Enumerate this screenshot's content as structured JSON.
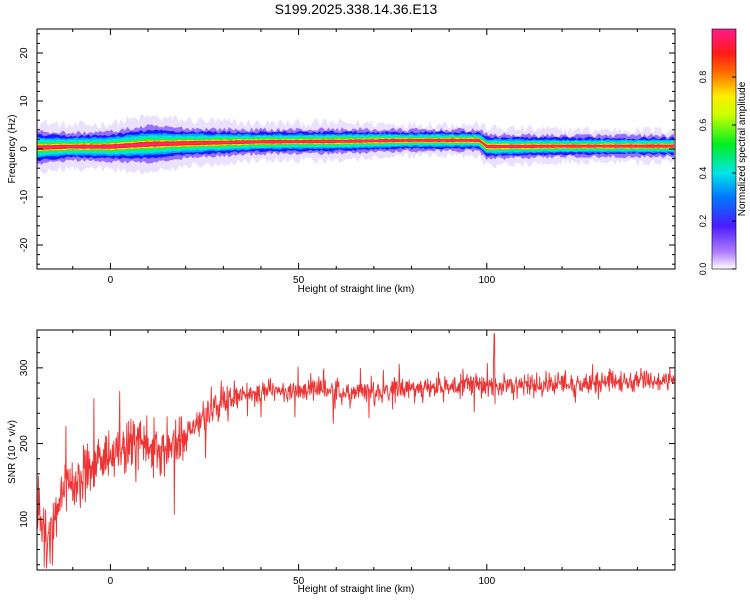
{
  "title": "S199.2025.338.14.36.E13",
  "colorbar": {
    "label": "Normalized spectral amplitude",
    "ticks": [
      "0.0",
      "0.2",
      "0.4",
      "0.6",
      "0.8"
    ],
    "range": [
      0,
      1
    ]
  },
  "chart_data": [
    {
      "type": "heatmap",
      "xlabel": "Height of straight line (km)",
      "ylabel": "Frequency (Hz)",
      "xlim": [
        -19.5,
        150
      ],
      "ylim": [
        -25,
        25
      ],
      "xticks": [
        0,
        50,
        100
      ],
      "yticks": [
        20,
        10,
        0,
        -10,
        -20
      ],
      "xtick_labels": [
        "0",
        "50",
        "100"
      ],
      "ytick_labels": [
        "20",
        "10",
        "0",
        "-10",
        "-20"
      ],
      "grid": false,
      "colormap": "rainbow (white→purple→blue→cyan→green→yellow→red→magenta)",
      "band_profile": [
        {
          "x": -19.5,
          "center": 0.3,
          "halfwidth": 2.2
        },
        {
          "x": -10,
          "center": 0.5,
          "halfwidth": 1.8
        },
        {
          "x": 0,
          "center": 0.5,
          "halfwidth": 2.0
        },
        {
          "x": 10,
          "center": 1.0,
          "halfwidth": 2.4
        },
        {
          "x": 20,
          "center": 1.2,
          "halfwidth": 2.0
        },
        {
          "x": 40,
          "center": 1.5,
          "halfwidth": 1.6
        },
        {
          "x": 60,
          "center": 1.6,
          "halfwidth": 1.6
        },
        {
          "x": 80,
          "center": 1.8,
          "halfwidth": 1.4
        },
        {
          "x": 98,
          "center": 1.8,
          "halfwidth": 1.4
        },
        {
          "x": 100,
          "center": 0.5,
          "halfwidth": 1.6
        },
        {
          "x": 120,
          "center": 0.6,
          "halfwidth": 1.4
        },
        {
          "x": 150,
          "center": 0.6,
          "halfwidth": 1.4
        }
      ]
    },
    {
      "type": "line",
      "xlabel": "Height of straight line (km)",
      "ylabel": "SNR (10 * v/v)",
      "xlim": [
        -19.5,
        150
      ],
      "ylim": [
        33,
        350
      ],
      "xticks": [
        0,
        50,
        100
      ],
      "yticks": [
        100,
        200,
        300
      ],
      "xtick_labels": [
        "0",
        "50",
        "100"
      ],
      "ytick_labels": [
        "100",
        "200",
        "300"
      ],
      "grid": false,
      "series": [
        {
          "color": "#ee3333",
          "x": [
            -19.5,
            -17,
            -15,
            -12,
            -10,
            -5,
            0,
            5,
            8,
            12,
            18,
            22,
            26,
            30,
            35,
            40,
            50,
            60,
            70,
            80,
            90,
            100,
            102,
            105,
            110,
            120,
            130,
            140,
            150
          ],
          "y": [
            120,
            90,
            95,
            150,
            145,
            175,
            185,
            195,
            200,
            190,
            200,
            220,
            245,
            258,
            263,
            268,
            270,
            270,
            270,
            272,
            275,
            278,
            280,
            275,
            278,
            278,
            280,
            282,
            282
          ]
        }
      ]
    }
  ]
}
